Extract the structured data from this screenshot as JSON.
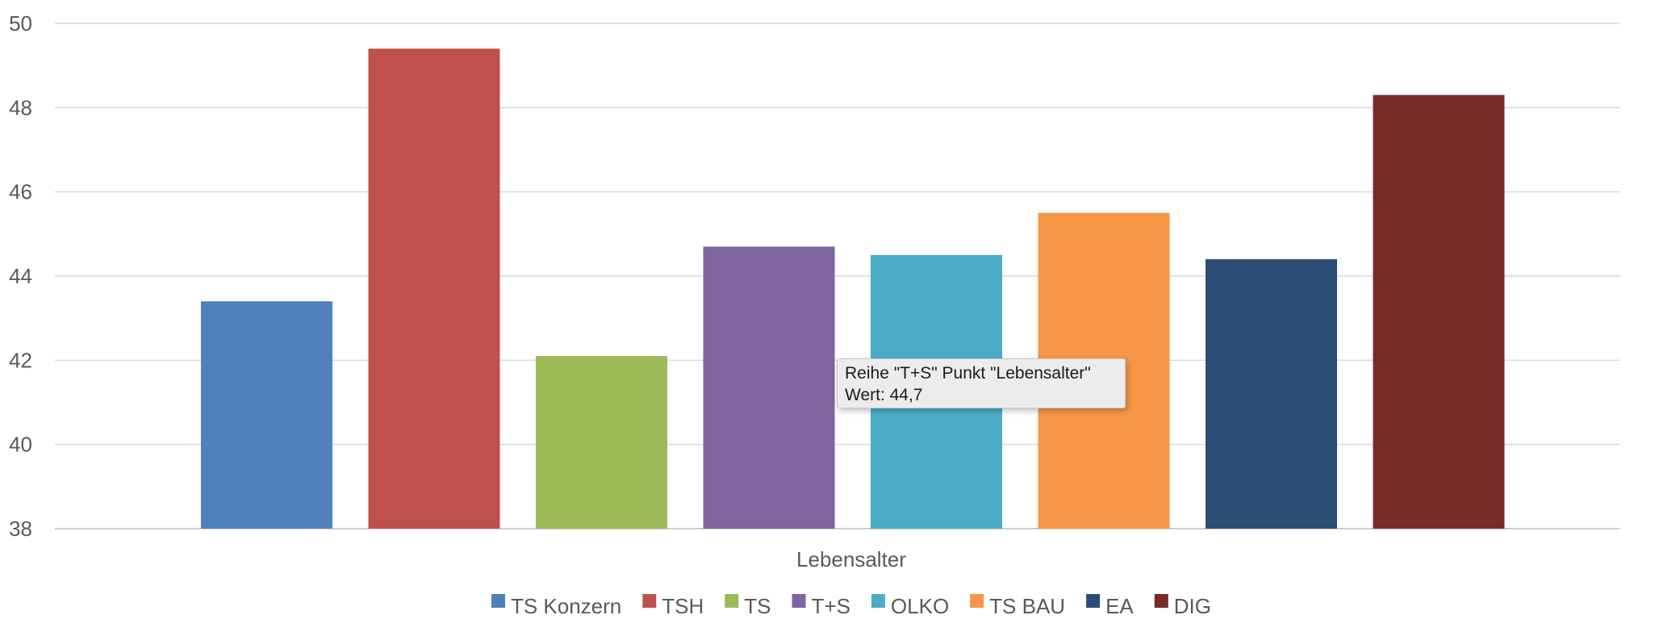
{
  "chart_data": {
    "type": "bar",
    "categories": [
      "Lebensalter"
    ],
    "xlabel": "Lebensalter",
    "ylim": [
      38,
      50
    ],
    "yticks": [
      38,
      40,
      42,
      44,
      46,
      48,
      50
    ],
    "grid": true,
    "legend_position": "bottom",
    "series": [
      {
        "name": "TS Konzern",
        "values": [
          43.4
        ],
        "color": "#4f81bd"
      },
      {
        "name": "TSH",
        "values": [
          49.4
        ],
        "color": "#c0504d"
      },
      {
        "name": "TS",
        "values": [
          42.1
        ],
        "color": "#9bbb59"
      },
      {
        "name": "T+S",
        "values": [
          44.7
        ],
        "color": "#8064a2"
      },
      {
        "name": "OLKO",
        "values": [
          44.5
        ],
        "color": "#4bacc6"
      },
      {
        "name": "TS BAU",
        "values": [
          45.5
        ],
        "color": "#f79646"
      },
      {
        "name": "EA",
        "values": [
          44.4
        ],
        "color": "#2c4d75"
      },
      {
        "name": "DIG",
        "values": [
          48.3
        ],
        "color": "#772c2a"
      }
    ]
  },
  "tooltip": {
    "line1": "Reihe \"T+S\" Punkt \"Lebensalter\"",
    "line2": "Wert: 44,7"
  }
}
